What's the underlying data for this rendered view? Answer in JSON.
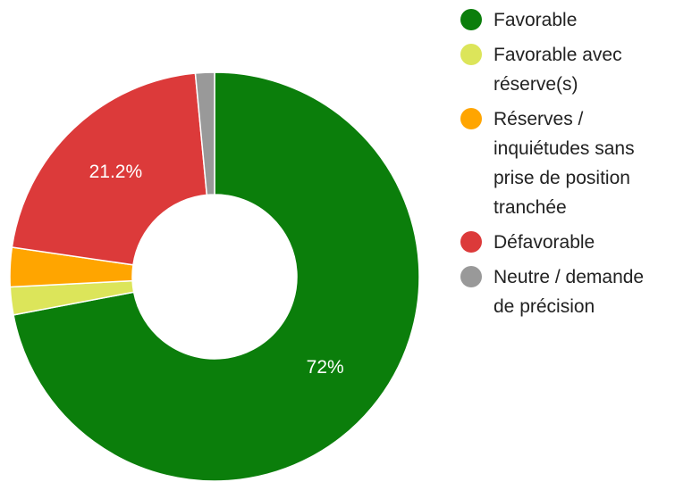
{
  "chart_data": {
    "type": "donut",
    "categories": [
      "Favorable",
      "Favorable avec réserve(s)",
      "Réserves / inquiétudes sans prise de position tranchée",
      "Défavorable",
      "Neutre / demande de précision"
    ],
    "values": [
      72,
      2.2,
      3.1,
      21.2,
      1.5
    ],
    "value_labels": [
      "72%",
      null,
      null,
      "21.2%",
      null
    ],
    "colors": [
      "#0b7e0b",
      "#dce55a",
      "#ffa500",
      "#dc3a3a",
      "#999999"
    ],
    "legend": "right"
  }
}
